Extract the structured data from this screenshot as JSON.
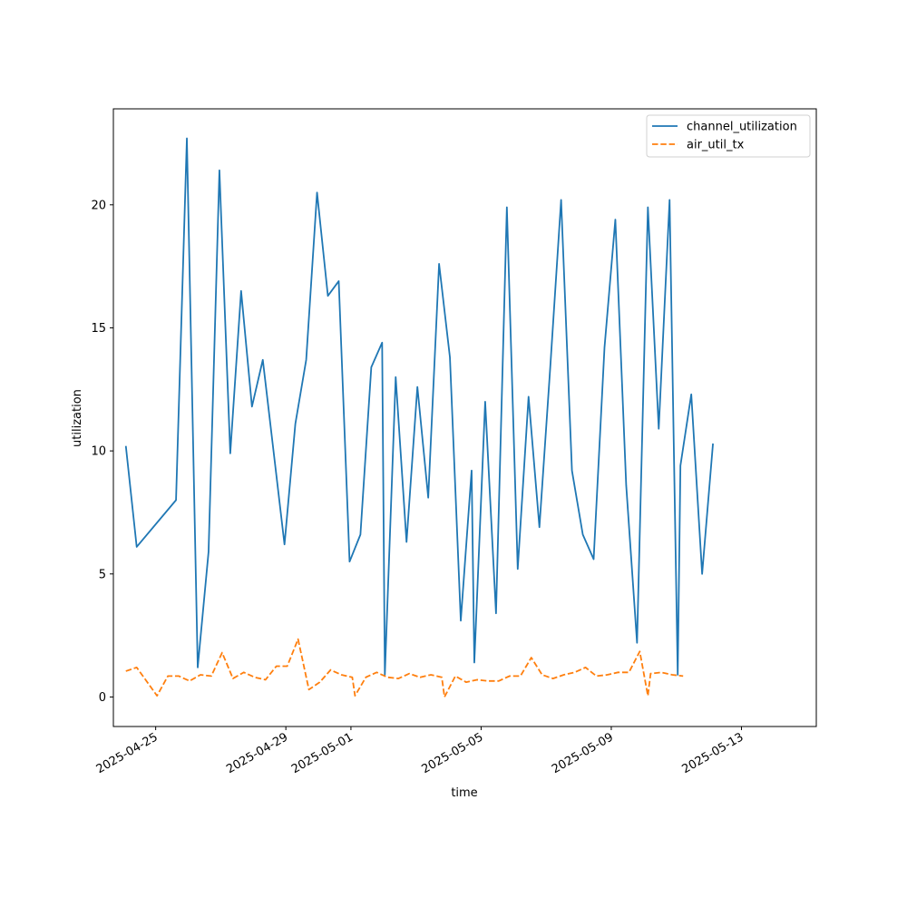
{
  "chart_data": {
    "type": "line",
    "title": "",
    "xlabel": "time",
    "ylabel": "utilization",
    "x_type": "date",
    "xlim": [
      "2025-04-23T16:48",
      "2025-05-15T07:12"
    ],
    "ylim": [
      -1.2,
      23.9
    ],
    "x_ticks": [
      "2025-04-25",
      "2025-04-29",
      "2025-05-01",
      "2025-05-05",
      "2025-05-09",
      "2025-05-13"
    ],
    "y_ticks": [
      0,
      5,
      10,
      15,
      20
    ],
    "grid": false,
    "legend_position": "top-right",
    "series": [
      {
        "name": "channel_utilization",
        "color": "#1f77b4",
        "style": "solid",
        "points": [
          [
            "2025-04-24T02:00",
            10.2
          ],
          [
            "2025-04-24T10:00",
            6.1
          ],
          [
            "2025-04-25T15:00",
            8.0
          ],
          [
            "2025-04-25T23:00",
            22.7
          ],
          [
            "2025-04-26T07:00",
            1.2
          ],
          [
            "2025-04-26T15:00",
            5.9
          ],
          [
            "2025-04-26T23:00",
            21.4
          ],
          [
            "2025-04-27T07:00",
            9.9
          ],
          [
            "2025-04-27T15:00",
            16.5
          ],
          [
            "2025-04-27T23:00",
            11.8
          ],
          [
            "2025-04-28T07:00",
            13.7
          ],
          [
            "2025-04-28T23:00",
            6.2
          ],
          [
            "2025-04-29T07:00",
            11.1
          ],
          [
            "2025-04-29T15:00",
            13.7
          ],
          [
            "2025-04-29T23:00",
            20.5
          ],
          [
            "2025-04-30T07:00",
            16.3
          ],
          [
            "2025-04-30T15:00",
            16.9
          ],
          [
            "2025-04-30T23:00",
            5.5
          ],
          [
            "2025-05-01T07:00",
            6.6
          ],
          [
            "2025-05-01T15:00",
            13.4
          ],
          [
            "2025-05-01T23:00",
            14.4
          ],
          [
            "2025-05-02T01:00",
            0.9
          ],
          [
            "2025-05-02T09:00",
            13.0
          ],
          [
            "2025-05-02T17:00",
            6.3
          ],
          [
            "2025-05-03T01:00",
            12.6
          ],
          [
            "2025-05-03T09:00",
            8.1
          ],
          [
            "2025-05-03T17:00",
            17.6
          ],
          [
            "2025-05-04T01:00",
            13.8
          ],
          [
            "2025-05-04T09:00",
            3.1
          ],
          [
            "2025-05-04T17:00",
            9.2
          ],
          [
            "2025-05-04T19:00",
            1.4
          ],
          [
            "2025-05-05T03:00",
            12.0
          ],
          [
            "2025-05-05T11:00",
            3.4
          ],
          [
            "2025-05-05T19:00",
            19.9
          ],
          [
            "2025-05-06T03:00",
            5.2
          ],
          [
            "2025-05-06T11:00",
            12.2
          ],
          [
            "2025-05-06T19:00",
            6.9
          ],
          [
            "2025-05-07T03:00",
            13.4
          ],
          [
            "2025-05-07T11:00",
            20.2
          ],
          [
            "2025-05-07T19:00",
            9.2
          ],
          [
            "2025-05-08T03:00",
            6.6
          ],
          [
            "2025-05-08T11:00",
            5.6
          ],
          [
            "2025-05-08T19:00",
            14.2
          ],
          [
            "2025-05-09T03:00",
            19.4
          ],
          [
            "2025-05-09T11:00",
            8.6
          ],
          [
            "2025-05-09T19:00",
            2.2
          ],
          [
            "2025-05-10T03:00",
            19.9
          ],
          [
            "2025-05-10T11:00",
            10.9
          ],
          [
            "2025-05-10T19:00",
            20.2
          ],
          [
            "2025-05-11T01:00",
            0.9
          ],
          [
            "2025-05-11T03:00",
            9.4
          ],
          [
            "2025-05-11T11:00",
            12.3
          ],
          [
            "2025-05-11T19:00",
            5.0
          ],
          [
            "2025-05-12T03:00",
            10.3
          ]
        ]
      },
      {
        "name": "air_util_tx",
        "color": "#ff7f0e",
        "style": "dashed",
        "points": [
          [
            "2025-04-24T02:00",
            1.05
          ],
          [
            "2025-04-24T10:00",
            1.2
          ],
          [
            "2025-04-25T01:00",
            0.05
          ],
          [
            "2025-04-25T09:00",
            0.85
          ],
          [
            "2025-04-25T17:00",
            0.85
          ],
          [
            "2025-04-26T01:00",
            0.65
          ],
          [
            "2025-04-26T09:00",
            0.9
          ],
          [
            "2025-04-26T17:00",
            0.85
          ],
          [
            "2025-04-27T01:00",
            1.8
          ],
          [
            "2025-04-27T09:00",
            0.75
          ],
          [
            "2025-04-27T17:00",
            1.0
          ],
          [
            "2025-04-28T01:00",
            0.8
          ],
          [
            "2025-04-28T09:00",
            0.7
          ],
          [
            "2025-04-28T17:00",
            1.25
          ],
          [
            "2025-04-29T01:00",
            1.25
          ],
          [
            "2025-04-29T09:00",
            2.35
          ],
          [
            "2025-04-29T17:00",
            0.3
          ],
          [
            "2025-04-30T01:00",
            0.6
          ],
          [
            "2025-04-30T09:00",
            1.1
          ],
          [
            "2025-04-30T17:00",
            0.9
          ],
          [
            "2025-05-01T01:00",
            0.8
          ],
          [
            "2025-05-01T03:00",
            0.05
          ],
          [
            "2025-05-01T11:00",
            0.8
          ],
          [
            "2025-05-01T19:00",
            1.0
          ],
          [
            "2025-05-02T03:00",
            0.8
          ],
          [
            "2025-05-02T11:00",
            0.75
          ],
          [
            "2025-05-02T19:00",
            0.95
          ],
          [
            "2025-05-03T03:00",
            0.8
          ],
          [
            "2025-05-03T11:00",
            0.9
          ],
          [
            "2025-05-03T19:00",
            0.8
          ],
          [
            "2025-05-03T21:00",
            0.0
          ],
          [
            "2025-05-04T05:00",
            0.85
          ],
          [
            "2025-05-04T13:00",
            0.6
          ],
          [
            "2025-05-04T21:00",
            0.7
          ],
          [
            "2025-05-05T05:00",
            0.65
          ],
          [
            "2025-05-05T13:00",
            0.65
          ],
          [
            "2025-05-05T21:00",
            0.85
          ],
          [
            "2025-05-06T05:00",
            0.85
          ],
          [
            "2025-05-06T13:00",
            1.6
          ],
          [
            "2025-05-06T21:00",
            0.9
          ],
          [
            "2025-05-07T05:00",
            0.75
          ],
          [
            "2025-05-07T13:00",
            0.9
          ],
          [
            "2025-05-07T21:00",
            1.0
          ],
          [
            "2025-05-08T05:00",
            1.2
          ],
          [
            "2025-05-08T13:00",
            0.85
          ],
          [
            "2025-05-08T21:00",
            0.9
          ],
          [
            "2025-05-09T05:00",
            1.0
          ],
          [
            "2025-05-09T13:00",
            1.0
          ],
          [
            "2025-05-09T21:00",
            1.85
          ],
          [
            "2025-05-10T03:00",
            0.05
          ],
          [
            "2025-05-10T05:00",
            0.95
          ],
          [
            "2025-05-10T13:00",
            1.0
          ],
          [
            "2025-05-10T21:00",
            0.9
          ],
          [
            "2025-05-11T05:00",
            0.85
          ]
        ]
      }
    ]
  }
}
